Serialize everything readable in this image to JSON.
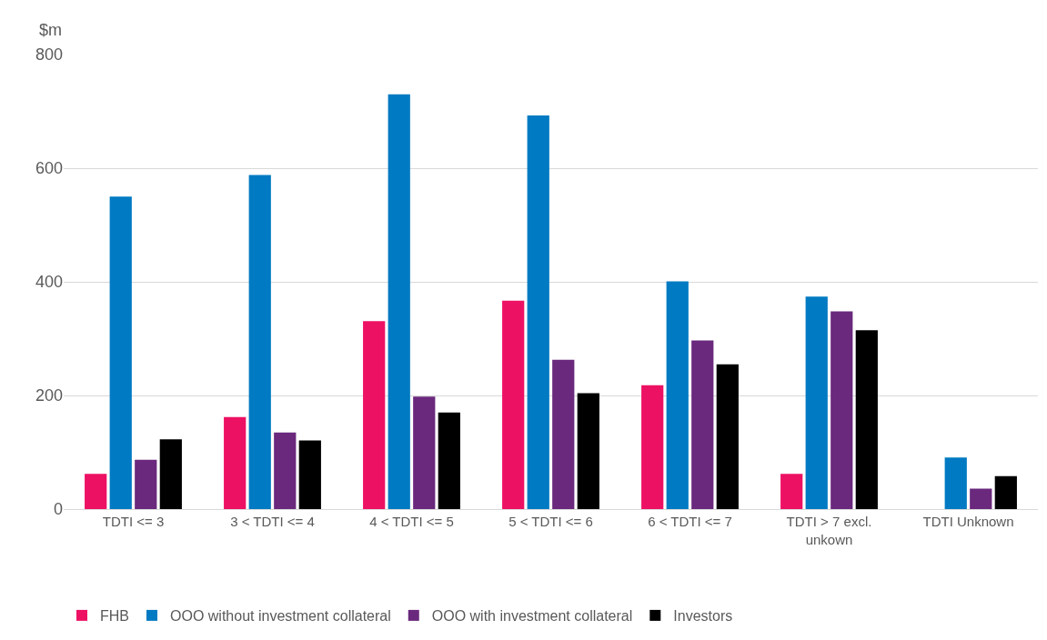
{
  "chart_data": {
    "type": "bar",
    "ylabel": "$m",
    "categories": [
      "TDTI <= 3",
      "3 < TDTI <= 4",
      "4 < TDTI <= 5",
      "5 < TDTI <= 6",
      "6 < TDTI <= 7",
      "TDTI > 7 excl.\nunkown",
      "TDTI Unknown"
    ],
    "series": [
      {
        "name": "FHB",
        "color": "#ed1164",
        "values": [
          62,
          162,
          331,
          367,
          218,
          62,
          null
        ]
      },
      {
        "name": "OOO without investment collateral",
        "color": "#007ac2",
        "values": [
          550,
          588,
          730,
          693,
          401,
          374,
          91
        ]
      },
      {
        "name": "OOO with investment collateral",
        "color": "#6a297d",
        "values": [
          87,
          135,
          198,
          263,
          297,
          348,
          36
        ]
      },
      {
        "name": "Investors",
        "color": "#000000",
        "values": [
          123,
          121,
          170,
          204,
          255,
          315,
          58
        ]
      }
    ],
    "ylim": [
      0,
      800
    ],
    "yticks": [
      0,
      200,
      400,
      600,
      800
    ],
    "grid": "y",
    "legend": "bottom"
  }
}
